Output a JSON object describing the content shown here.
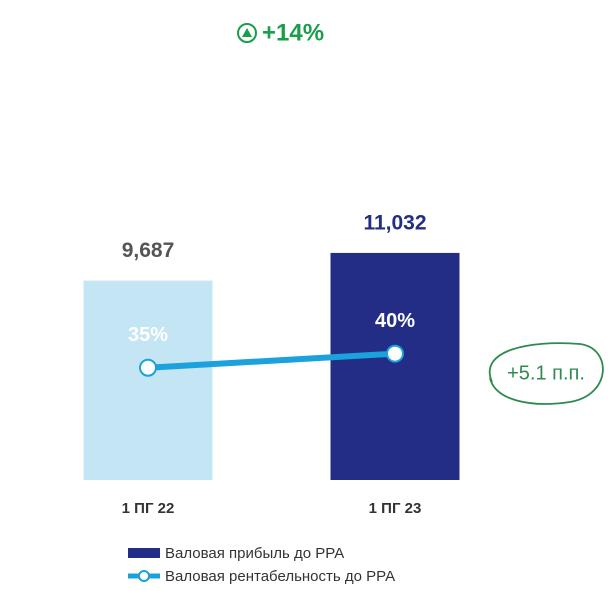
{
  "chart_data": {
    "type": "bar",
    "annotations": [
      "+14%",
      "+5.1 п.п."
    ],
    "categories": [
      "1 ПГ 22",
      "1 ПГ 23"
    ],
    "series": [
      {
        "name": "Валовая прибыль до РРА",
        "type": "bar",
        "colors": [
          "#c4e5f4",
          "#232d85"
        ],
        "color": "#232d85",
        "values": [
          9687,
          11032
        ],
        "value_labels": [
          "9,687",
          "11,032"
        ]
      },
      {
        "name": "Валовая рентабельность до РРА",
        "type": "line",
        "axis": "y2",
        "color": "#1ba1db",
        "values": [
          35,
          40
        ],
        "value_labels": [
          "35%",
          "40%"
        ]
      }
    ],
    "ylim": [
      0,
      12000
    ],
    "y2lim": [
      -5,
      83
    ]
  }
}
